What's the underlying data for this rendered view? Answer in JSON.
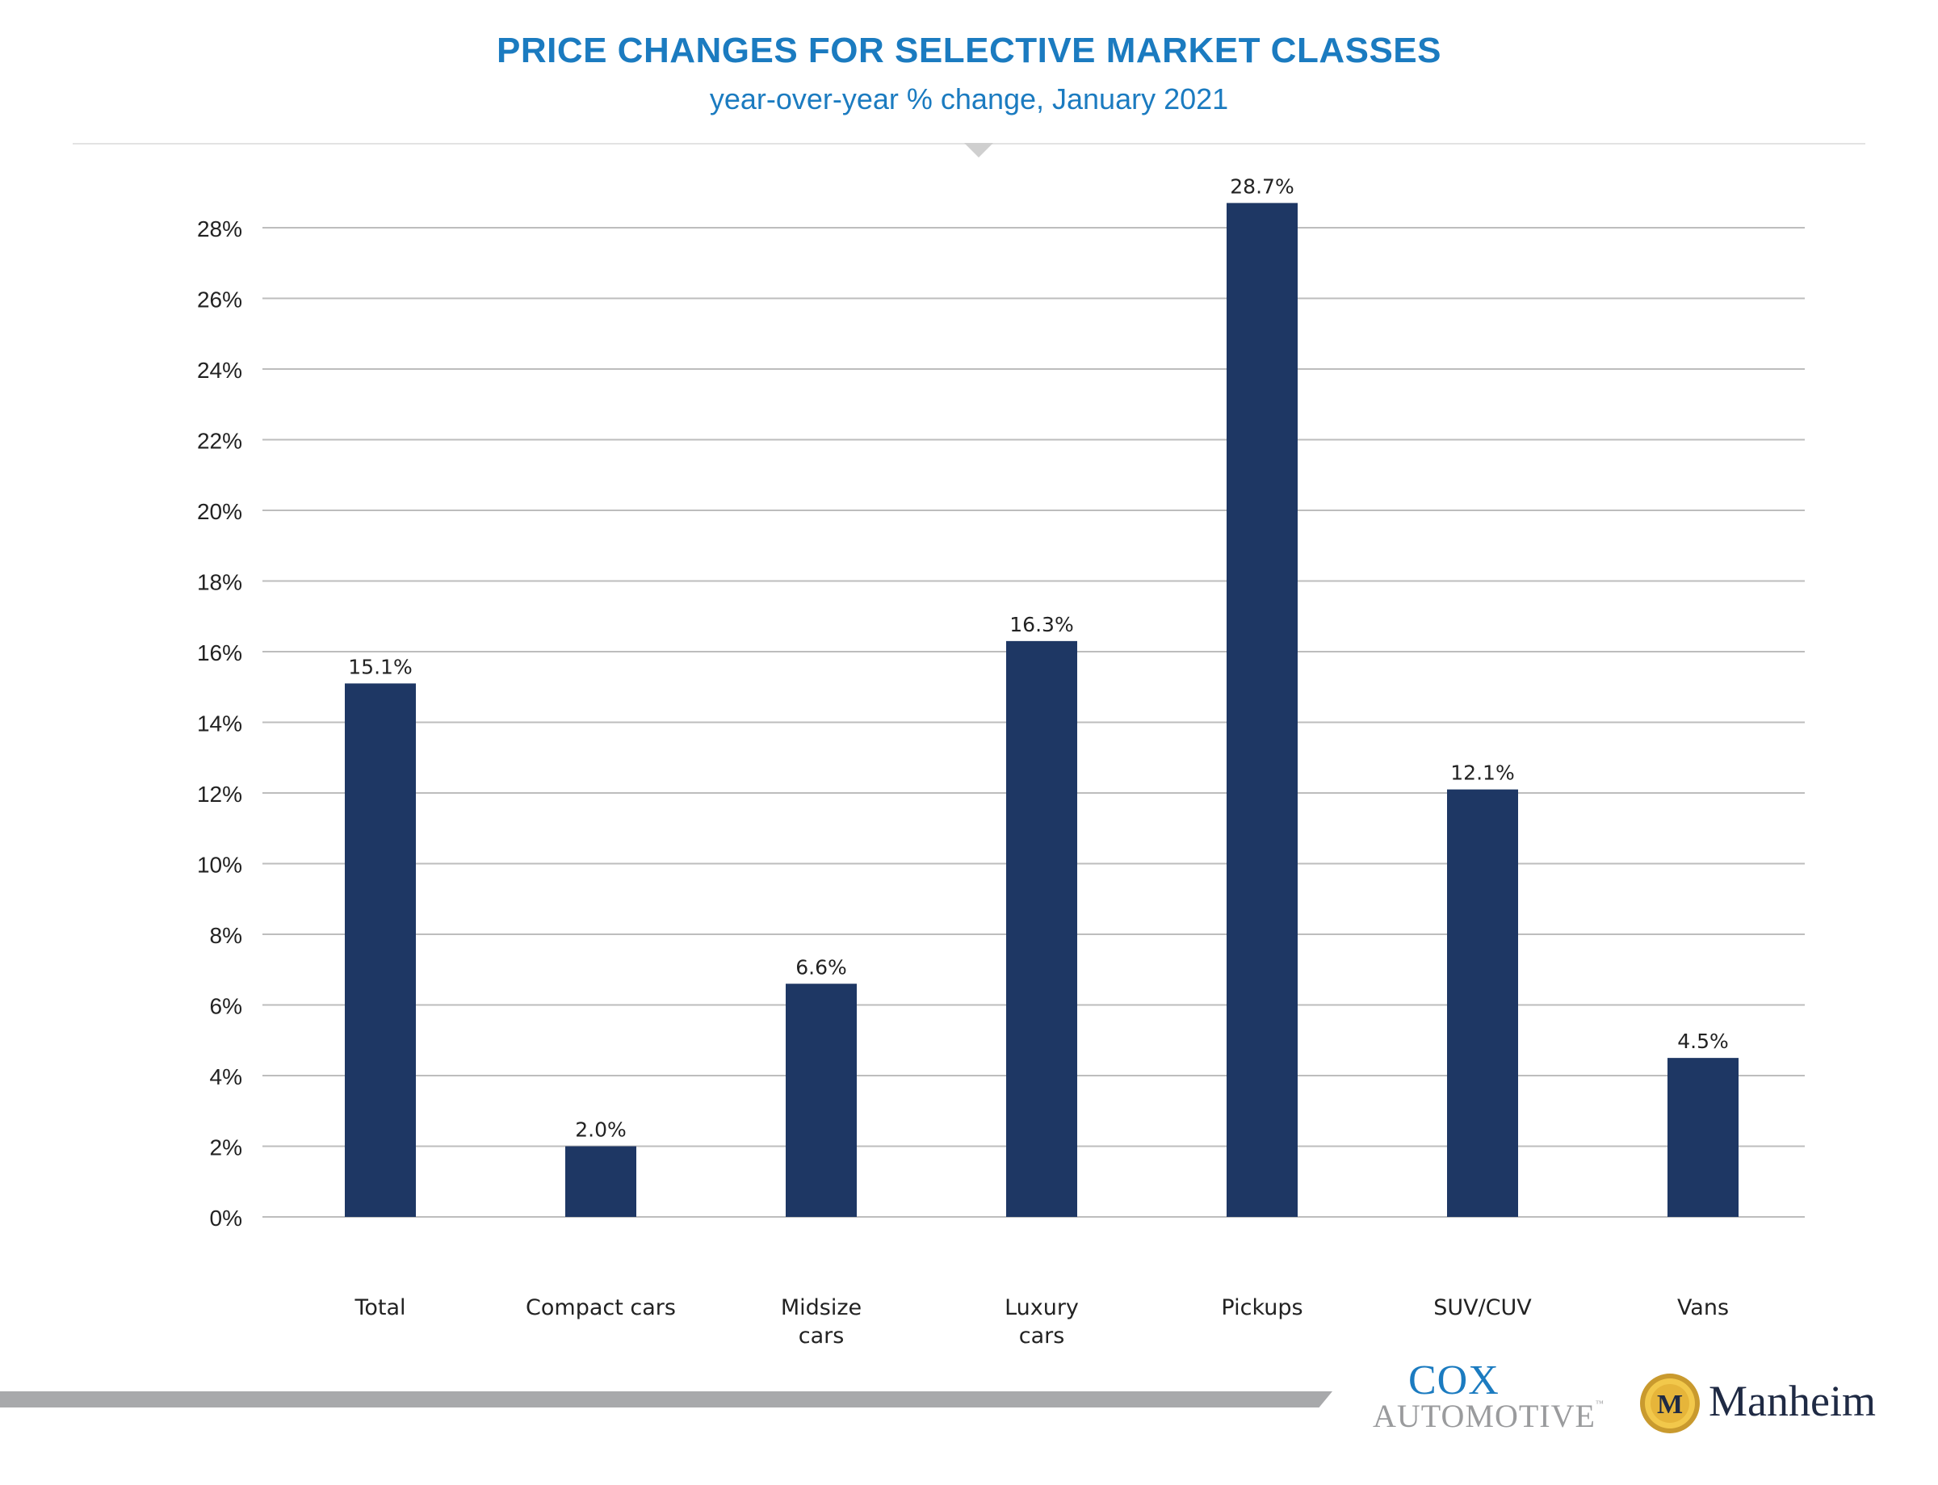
{
  "header": {
    "title": "PRICE CHANGES FOR SELECTIVE MARKET CLASSES",
    "subtitle": "year-over-year % change, January 2021"
  },
  "colors": {
    "title": "#1b7bc0",
    "bar": "#1e3764",
    "grid": "#bdbdbd",
    "footer_bar": "#a8a9ab"
  },
  "chart_data": {
    "type": "bar",
    "title": "PRICE CHANGES FOR SELECTIVE MARKET CLASSES",
    "subtitle": "year-over-year % change, January 2021",
    "categories": [
      [
        "Total"
      ],
      [
        "Compact cars"
      ],
      [
        "Midsize",
        "cars"
      ],
      [
        "Luxury",
        "cars"
      ],
      [
        "Pickups"
      ],
      [
        "SUV/CUV"
      ],
      [
        "Vans"
      ]
    ],
    "values": [
      15.1,
      2.0,
      6.6,
      16.3,
      28.7,
      12.1,
      4.5
    ],
    "data_labels": [
      "15.1%",
      "2.0%",
      "6.6%",
      "16.3%",
      "28.7%",
      "12.1%",
      "4.5%"
    ],
    "y_ticks": [
      0,
      2,
      4,
      6,
      8,
      10,
      12,
      14,
      16,
      18,
      20,
      22,
      24,
      26,
      28
    ],
    "y_tick_labels": [
      "0%",
      "2%",
      "4%",
      "6%",
      "8%",
      "10%",
      "12%",
      "14%",
      "16%",
      "18%",
      "20%",
      "22%",
      "24%",
      "26%",
      "28%"
    ],
    "ylim": [
      0,
      28
    ],
    "xlabel": "",
    "ylabel": "",
    "grid": true,
    "legend": "none"
  },
  "logos": {
    "cox_top": "COX",
    "cox_bottom": "AUTOMOTIVE",
    "cox_tm": "™",
    "manheim": "Manheim",
    "manheim_emblem_letter": "M"
  }
}
